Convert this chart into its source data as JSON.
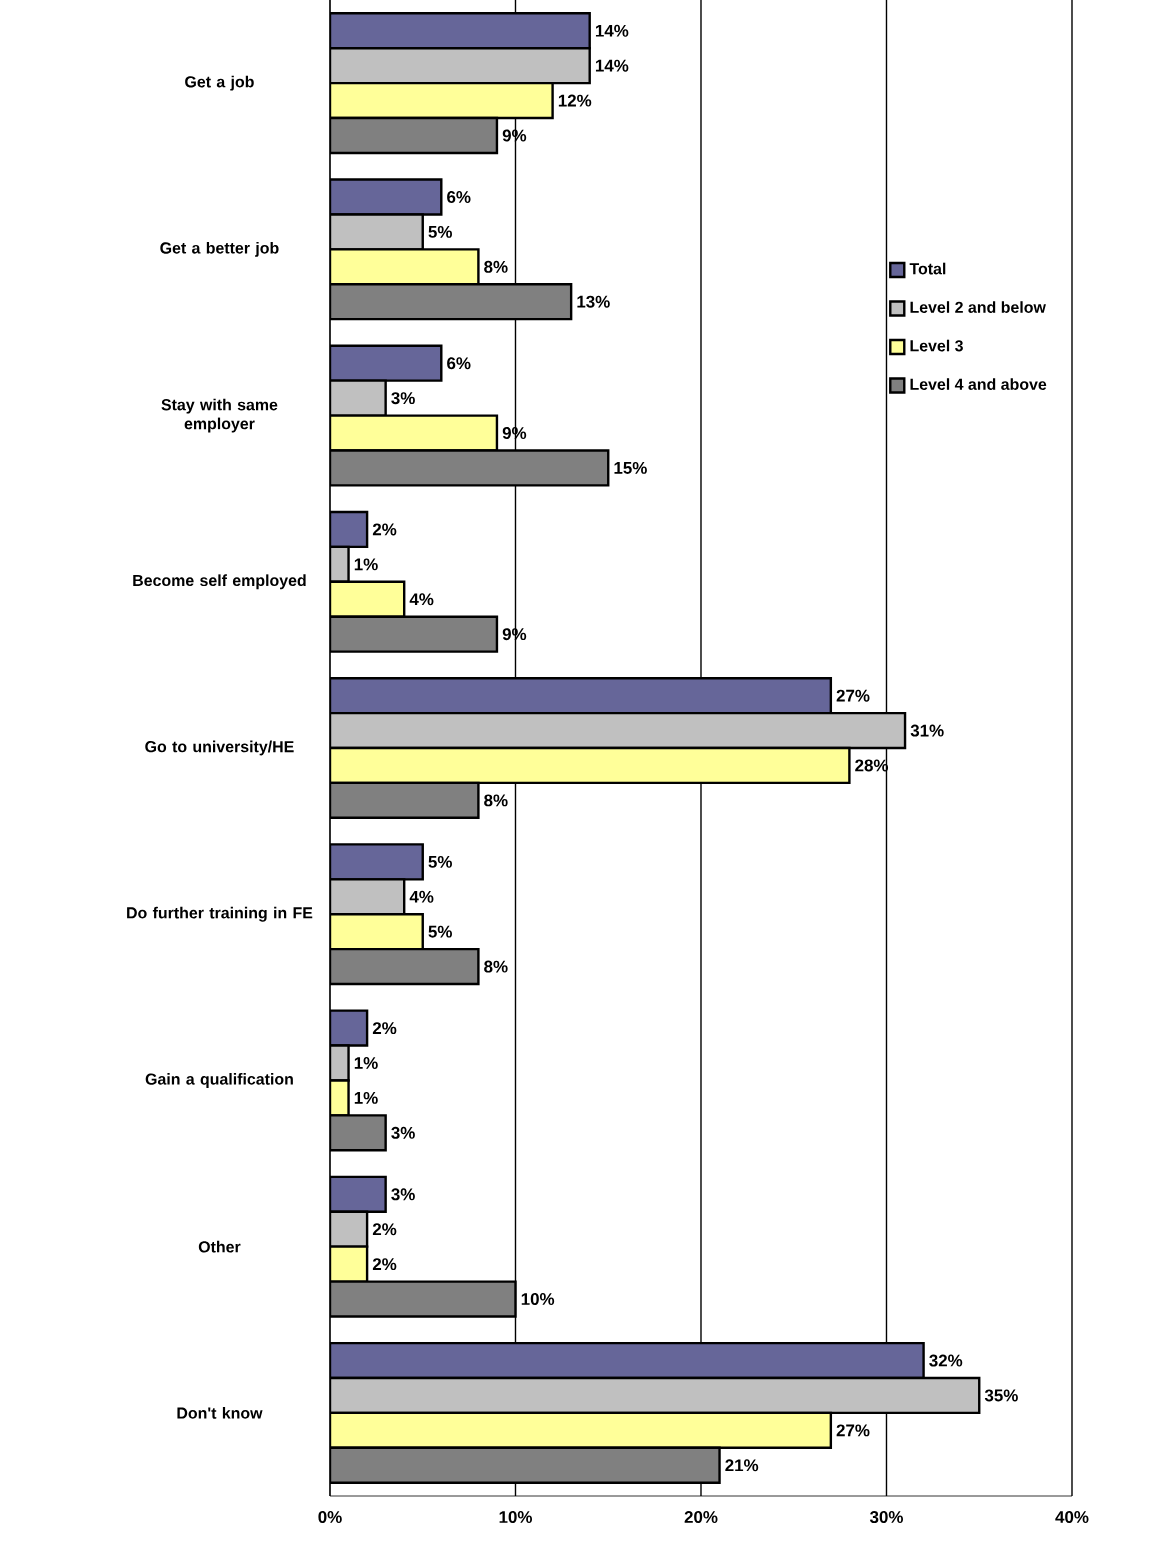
{
  "chart_data": {
    "type": "bar",
    "orientation": "horizontal",
    "categories": [
      "Get a job",
      "Get a better job",
      "Stay with same employer",
      "Become self employed",
      "Go to university/HE",
      "Do further training in FE",
      "Gain a qualification",
      "Other",
      "Don't know"
    ],
    "series": [
      {
        "name": "Total",
        "color": "#666699",
        "values": [
          14,
          6,
          6,
          2,
          27,
          5,
          2,
          3,
          32
        ],
        "value_labels": [
          "14%",
          "6%",
          "6%",
          "2%",
          "27%",
          "5%",
          "2%",
          "3%",
          "32%"
        ]
      },
      {
        "name": "Level 2 and below",
        "color": "#c0c0c0",
        "values": [
          14,
          5,
          3,
          1,
          31,
          4,
          1,
          2,
          35
        ],
        "value_labels": [
          "14%",
          "5%",
          "3%",
          "1%",
          "31%",
          "4%",
          "1%",
          "2%",
          "35%"
        ]
      },
      {
        "name": "Level 3",
        "color": "#ffff99",
        "values": [
          12,
          8,
          9,
          4,
          28,
          5,
          1,
          2,
          27
        ],
        "value_labels": [
          "12%",
          "8%",
          "9%",
          "4%",
          "28%",
          "5%",
          "1%",
          "2%",
          "27%"
        ]
      },
      {
        "name": "Level 4 and above",
        "color": "#808080",
        "values": [
          9,
          13,
          15,
          9,
          8,
          8,
          3,
          10,
          21
        ],
        "value_labels": [
          "9%",
          "13%",
          "15%",
          "9%",
          "8%",
          "8%",
          "3%",
          "10%",
          "21%"
        ]
      }
    ],
    "xlim": [
      0,
      40
    ],
    "xticks": [
      {
        "value": 0,
        "label": "0%"
      },
      {
        "value": 10,
        "label": "10%"
      },
      {
        "value": 20,
        "label": "20%"
      },
      {
        "value": 30,
        "label": "30%"
      },
      {
        "value": 40,
        "label": "40%"
      }
    ],
    "grid": "x",
    "legend": "top right"
  }
}
